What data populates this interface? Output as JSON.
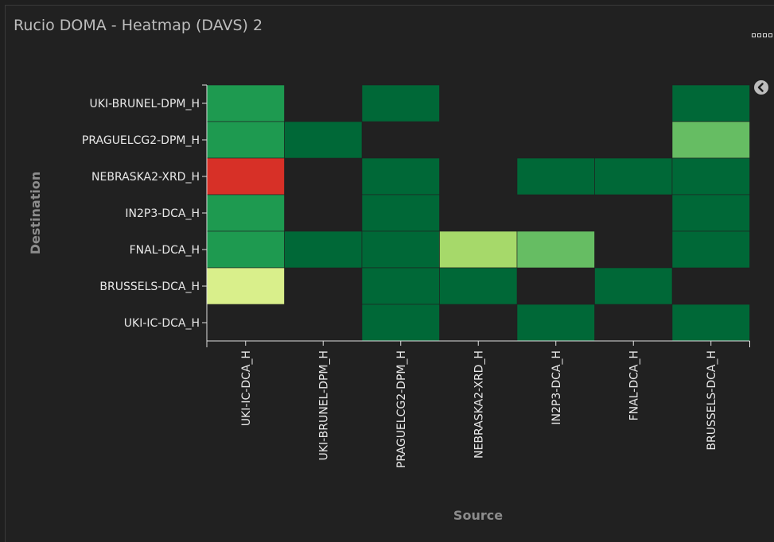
{
  "panel": {
    "title": "Rucio DOMA - Heatmap (DAVS) 2"
  },
  "icons": {
    "menu": "more-dots-icon",
    "collapse": "chevron-left-circle-icon"
  },
  "chart_data": {
    "type": "heatmap",
    "title": "Rucio DOMA - Heatmap (DAVS) 2",
    "xlabel": "Source",
    "ylabel": "Destination",
    "x_categories": [
      "UKI-IC-DCA_H",
      "UKI-BRUNEL-DPM_H",
      "PRAGUELCG2-DPM_H",
      "NEBRASKA2-XRD_H",
      "IN2P3-DCA_H",
      "FNAL-DCA_H",
      "BRUSSELS-DCA_H"
    ],
    "y_categories": [
      "UKI-BRUNEL-DPM_H",
      "PRAGUELCG2-DPM_H",
      "NEBRASKA2-XRD_H",
      "IN2P3-DCA_H",
      "FNAL-DCA_H",
      "BRUSSELS-DCA_H",
      "UKI-IC-DCA_H"
    ],
    "cells": [
      {
        "source": "UKI-IC-DCA_H",
        "destination": "UKI-BRUNEL-DPM_H",
        "color": "#1e9a50"
      },
      {
        "source": "PRAGUELCG2-DPM_H",
        "destination": "UKI-BRUNEL-DPM_H",
        "color": "#006837"
      },
      {
        "source": "BRUSSELS-DCA_H",
        "destination": "UKI-BRUNEL-DPM_H",
        "color": "#006837"
      },
      {
        "source": "UKI-IC-DCA_H",
        "destination": "PRAGUELCG2-DPM_H",
        "color": "#1e9a50"
      },
      {
        "source": "UKI-BRUNEL-DPM_H",
        "destination": "PRAGUELCG2-DPM_H",
        "color": "#006837"
      },
      {
        "source": "BRUSSELS-DCA_H",
        "destination": "PRAGUELCG2-DPM_H",
        "color": "#66bd63"
      },
      {
        "source": "UKI-IC-DCA_H",
        "destination": "NEBRASKA2-XRD_H",
        "color": "#d73027"
      },
      {
        "source": "PRAGUELCG2-DPM_H",
        "destination": "NEBRASKA2-XRD_H",
        "color": "#006837"
      },
      {
        "source": "IN2P3-DCA_H",
        "destination": "NEBRASKA2-XRD_H",
        "color": "#006837"
      },
      {
        "source": "FNAL-DCA_H",
        "destination": "NEBRASKA2-XRD_H",
        "color": "#006837"
      },
      {
        "source": "BRUSSELS-DCA_H",
        "destination": "NEBRASKA2-XRD_H",
        "color": "#006837"
      },
      {
        "source": "UKI-IC-DCA_H",
        "destination": "IN2P3-DCA_H",
        "color": "#1e9a50"
      },
      {
        "source": "PRAGUELCG2-DPM_H",
        "destination": "IN2P3-DCA_H",
        "color": "#006837"
      },
      {
        "source": "BRUSSELS-DCA_H",
        "destination": "IN2P3-DCA_H",
        "color": "#006837"
      },
      {
        "source": "UKI-IC-DCA_H",
        "destination": "FNAL-DCA_H",
        "color": "#1e9a50"
      },
      {
        "source": "UKI-BRUNEL-DPM_H",
        "destination": "FNAL-DCA_H",
        "color": "#006837"
      },
      {
        "source": "PRAGUELCG2-DPM_H",
        "destination": "FNAL-DCA_H",
        "color": "#006837"
      },
      {
        "source": "NEBRASKA2-XRD_H",
        "destination": "FNAL-DCA_H",
        "color": "#a6d96a"
      },
      {
        "source": "IN2P3-DCA_H",
        "destination": "FNAL-DCA_H",
        "color": "#66bd63"
      },
      {
        "source": "BRUSSELS-DCA_H",
        "destination": "FNAL-DCA_H",
        "color": "#006837"
      },
      {
        "source": "UKI-IC-DCA_H",
        "destination": "BRUSSELS-DCA_H",
        "color": "#d9ef8b"
      },
      {
        "source": "PRAGUELCG2-DPM_H",
        "destination": "BRUSSELS-DCA_H",
        "color": "#006837"
      },
      {
        "source": "NEBRASKA2-XRD_H",
        "destination": "BRUSSELS-DCA_H",
        "color": "#006837"
      },
      {
        "source": "FNAL-DCA_H",
        "destination": "BRUSSELS-DCA_H",
        "color": "#006837"
      },
      {
        "source": "PRAGUELCG2-DPM_H",
        "destination": "UKI-IC-DCA_H",
        "color": "#006837"
      },
      {
        "source": "IN2P3-DCA_H",
        "destination": "UKI-IC-DCA_H",
        "color": "#006837"
      },
      {
        "source": "BRUSSELS-DCA_H",
        "destination": "UKI-IC-DCA_H",
        "color": "#006837"
      }
    ]
  }
}
